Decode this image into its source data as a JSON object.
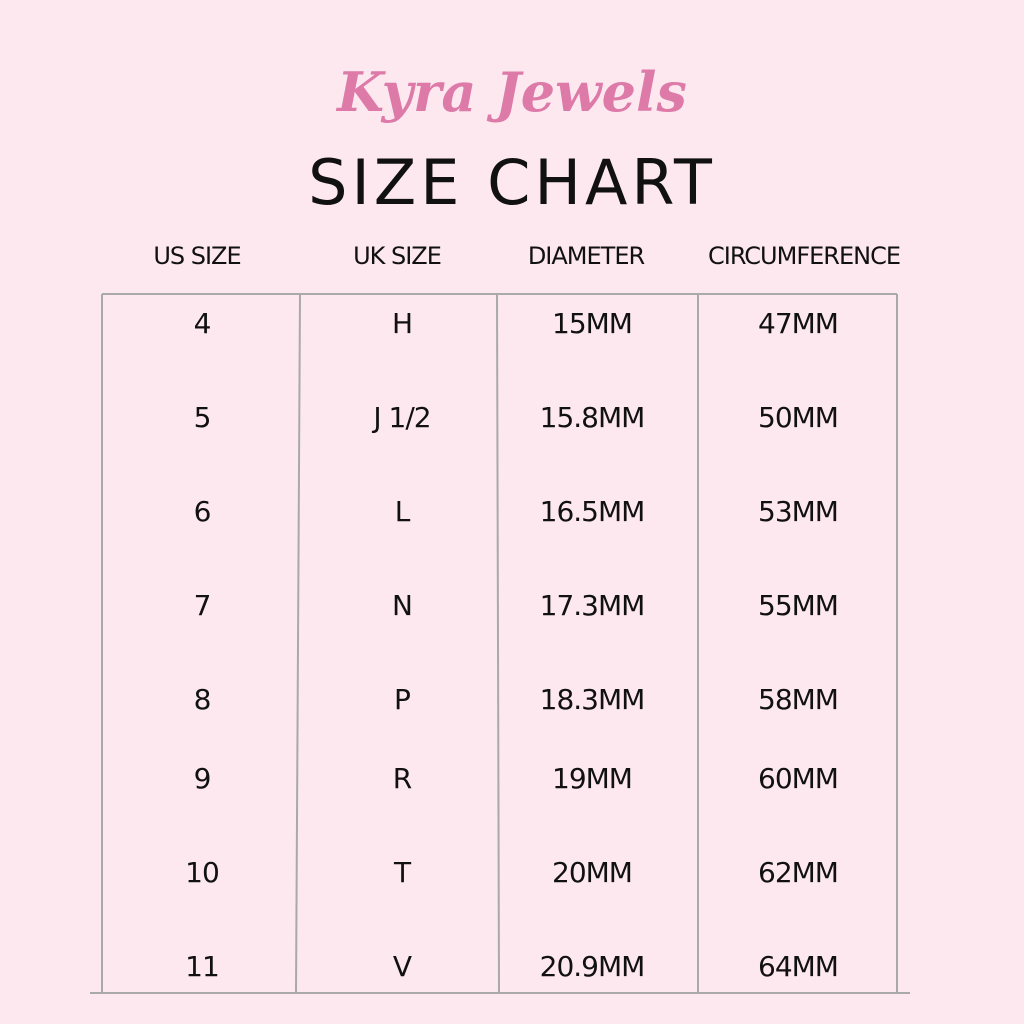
{
  "brand": "Kyra Jewels",
  "title": "SIZE CHART",
  "table": {
    "headers": [
      "US SIZE",
      "UK SIZE",
      "DIAMETER",
      "CIRCUMFERENCE"
    ],
    "rows": [
      [
        "4",
        "H",
        "15MM",
        "47MM"
      ],
      [
        "5",
        "J 1/2",
        "15.8MM",
        "50MM"
      ],
      [
        "6",
        "L",
        "16.5MM",
        "53MM"
      ],
      [
        "7",
        "N",
        "17.3MM",
        "55MM"
      ],
      [
        "8",
        "P",
        "18.3MM",
        "58MM"
      ],
      [
        "9",
        "R",
        "19MM",
        "60MM"
      ],
      [
        "10",
        "T",
        "20MM",
        "62MM"
      ],
      [
        "11",
        "V",
        "20.9MM",
        "64MM"
      ]
    ]
  }
}
